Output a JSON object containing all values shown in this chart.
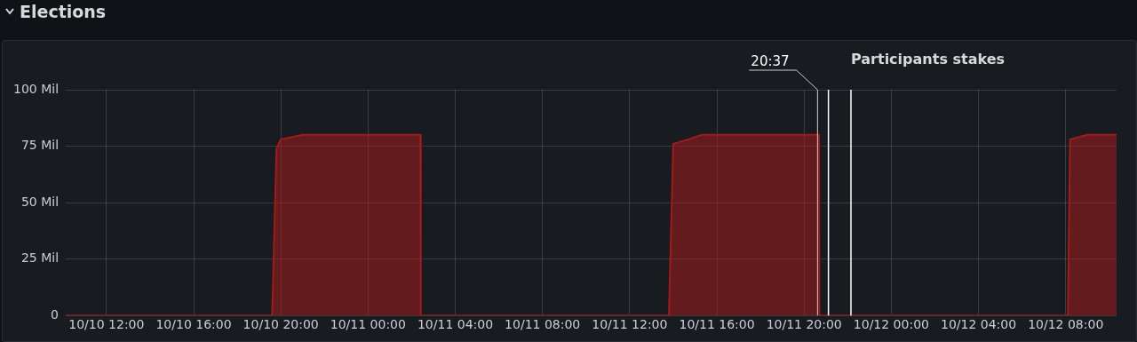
{
  "chart_data": {
    "type": "area",
    "title": "Participants stakes",
    "annotations": [
      "Elections"
    ],
    "x": [
      "--10-10T10:08",
      "--10-10T19:36",
      "--10-10T19:48",
      "--10-10T20:00",
      "--10-10T21:00",
      "--10-11T02:24",
      "--10-11T02:25",
      "--10-11T13:48",
      "--10-11T14:00",
      "--10-11T14:42",
      "--10-11T15:18",
      "--10-11T20:41",
      "--10-11T20:42",
      "--10-12T08:06",
      "--10-12T08:12",
      "--10-12T09:00",
      "--10-12T10:20"
    ],
    "series": [
      {
        "color": "#a31b1b",
        "values": [
          0,
          0,
          74,
          78,
          80,
          80,
          0,
          0,
          76,
          78,
          80,
          80,
          0,
          0,
          78,
          80,
          80
        ]
      }
    ],
    "xlim": [
      "--10-10T10:08",
      "--10-12T10:20"
    ],
    "xticks": [
      {
        "value": "--10-10T12:00",
        "label": "10/10 12:00"
      },
      {
        "value": "--10-10T16:00",
        "label": "10/10 16:00"
      },
      {
        "value": "--10-10T20:00",
        "label": "10/10 20:00"
      },
      {
        "value": "--10-11T00:00",
        "label": "10/11 00:00"
      },
      {
        "value": "--10-11T04:00",
        "label": "10/11 04:00"
      },
      {
        "value": "--10-11T08:00",
        "label": "10/11 08:00"
      },
      {
        "value": "--10-11T12:00",
        "label": "10/11 12:00"
      },
      {
        "value": "--10-11T16:00",
        "label": "10/11 16:00"
      },
      {
        "value": "--10-11T20:00",
        "label": "10/11 20:00"
      },
      {
        "value": "--10-12T00:00",
        "label": "10/12 00:00"
      },
      {
        "value": "--10-12T04:00",
        "label": "10/12 04:00"
      },
      {
        "value": "--10-12T08:00",
        "label": "10/12 08:00"
      }
    ],
    "ylim": [
      0,
      100
    ],
    "yticks": [
      0,
      {
        "value": 25,
        "label": "25 Mil"
      },
      {
        "value": 50,
        "label": "50 Mil"
      },
      {
        "value": 75,
        "label": "75 Mil"
      },
      {
        "value": 100,
        "label": "100 Mil"
      }
    ],
    "ref_lines": [
      {
        "axis": "x",
        "value": "--10-11T20:37",
        "label": "20:37",
        "color": "#cccccc"
      },
      {
        "axis": "x",
        "value": "--10-11T21:07",
        "color": "#ffffff"
      },
      {
        "axis": "x",
        "value": "--10-11T22:09",
        "color": "#ffffff"
      }
    ],
    "grid": true
  }
}
